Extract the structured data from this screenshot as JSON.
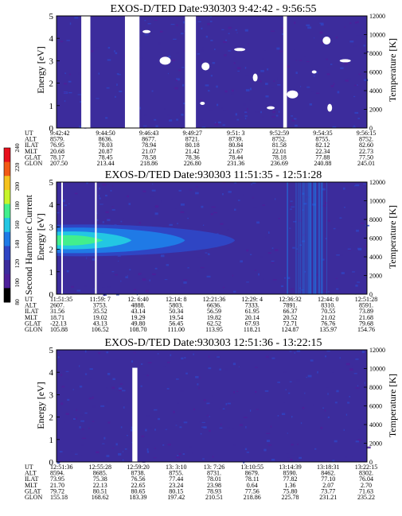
{
  "colors": {
    "background_field": "#3c2c9c",
    "void": "#ffffff",
    "palette": [
      "#000000",
      "#4d1f9a",
      "#3c2c9c",
      "#2f45c4",
      "#1f7ae6",
      "#23c7e3",
      "#42ef8d",
      "#c7f52b",
      "#f5c21d",
      "#f25a14",
      "#e8101c"
    ]
  },
  "colorbar": {
    "label": "Second Harmonic Current",
    "ticks": [
      "80",
      "100",
      "120",
      "140",
      "160",
      "180",
      "200",
      "220",
      "240"
    ]
  },
  "chart_data": [
    {
      "type": "heatmap",
      "title": "EXOS-D/TED   Date:930303   9:42:42 - 9:56:55",
      "ylabel": "Energy [eV]",
      "ylabel_right": "Temperature [K]",
      "ylim": [
        0,
        5
      ],
      "ylim_right": [
        0,
        12000
      ],
      "yticks": [
        "0",
        "1",
        "2",
        "3",
        "4",
        "5"
      ],
      "yticks_right": [
        "0",
        "2000",
        "4000",
        "6000",
        "8000",
        "10000",
        "12000"
      ],
      "time_range": [
        "9:42:42",
        "9:56:55"
      ],
      "data_gaps": [
        [
          "9:43:50",
          "9:44:15"
        ],
        [
          "9:45:50",
          "9:46:30"
        ],
        [
          "9:48:35",
          "9:49:05"
        ],
        [
          "9:53:05",
          "9:53:15"
        ]
      ],
      "table_rows": [
        {
          "label": "UT",
          "values": [
            "9:42:42",
            "9:44:50",
            "9:46:43",
            "9:49:27",
            "9:51: 3",
            "9:52:59",
            "9:54:35",
            "9:56:15"
          ]
        },
        {
          "label": "ALT",
          "values": [
            "8579.",
            "8636.",
            "8677.",
            "8721.",
            "8739.",
            "8752.",
            "8755.",
            "8752."
          ]
        },
        {
          "label": "ILAT",
          "values": [
            "76.95",
            "78.03",
            "78.94",
            "80.18",
            "80.84",
            "81.58",
            "82.12",
            "82.60"
          ]
        },
        {
          "label": "MLT",
          "values": [
            "20.68",
            "20.87",
            "21.07",
            "21.42",
            "21.67",
            "22.01",
            "22.34",
            "22.73"
          ]
        },
        {
          "label": "GLAT",
          "values": [
            "78.17",
            "78.45",
            "78.58",
            "78.36",
            "78.44",
            "78.18",
            "77.88",
            "77.50"
          ]
        },
        {
          "label": "GLON",
          "values": [
            "207.50",
            "213.44",
            "218.86",
            "226.80",
            "231.36",
            "236.69",
            "240.88",
            "245.01"
          ]
        }
      ]
    },
    {
      "type": "heatmap",
      "title": "EXOS-D/TED   Date:930303   11:51:35 - 12:51:28",
      "ylabel": "Energy [eV]",
      "ylabel_right": "Temperature [K]",
      "ylim": [
        0,
        5
      ],
      "ylim_right": [
        0,
        12000
      ],
      "yticks": [
        "0",
        "1",
        "2",
        "3",
        "4",
        "5"
      ],
      "yticks_right": [
        "0",
        "2000",
        "4000",
        "6000",
        "8000",
        "10000",
        "12000"
      ],
      "time_range": [
        "11:51:35",
        "12:51:28"
      ],
      "data_gaps": [
        [
          "11:52:30",
          "11:52:45"
        ],
        [
          "11:59:00",
          "11:59:20"
        ]
      ],
      "features": {
        "intense_band_energy_eV": [
          1.7,
          3.1
        ],
        "peak_energy_eV": 2.4,
        "band_fades_by": "12:26:00",
        "peak_level": 170
      },
      "table_rows": [
        {
          "label": "UT",
          "values": [
            "11:51:35",
            "11:59: 7",
            "12: 6:40",
            "12:14: 8",
            "12:21:36",
            "12:29: 4",
            "12:36:32",
            "12:44: 0",
            "12:51:28"
          ]
        },
        {
          "label": "ALT",
          "values": [
            "2607.",
            "3753.",
            "4888.",
            "5803.",
            "6636.",
            "7333.",
            "7891.",
            "8310.",
            "8591."
          ]
        },
        {
          "label": "ILAT",
          "values": [
            "31.56",
            "35.52",
            "43.14",
            "50.34",
            "56.59",
            "61.95",
            "66.37",
            "70.55",
            "73.89"
          ]
        },
        {
          "label": "MLT",
          "values": [
            "18.71",
            "19.02",
            "19.29",
            "19.54",
            "19.82",
            "20.14",
            "20.52",
            "21.02",
            "21.68"
          ]
        },
        {
          "label": "GLAT",
          "values": [
            "-22.13",
            "43.13",
            "49.80",
            "56.45",
            "62.52",
            "67.93",
            "72.71",
            "76.76",
            "79.68"
          ]
        },
        {
          "label": "GLON",
          "values": [
            "105.88",
            "106.52",
            "108.70",
            "111.00",
            "113.95",
            "118.21",
            "124.87",
            "135.97",
            "154.76"
          ]
        }
      ]
    },
    {
      "type": "heatmap",
      "title": "EXOS-D/TED   Date:930303   12:51:36 - 13:22:15",
      "ylabel": "Energy [eV]",
      "ylabel_right": "Temperature [K]",
      "ylim": [
        0,
        5
      ],
      "ylim_right": [
        0,
        12000
      ],
      "yticks": [
        "0",
        "1",
        "2",
        "3",
        "4",
        "5"
      ],
      "yticks_right": [
        "0",
        "2000",
        "4000",
        "6000",
        "8000",
        "10000",
        "12000"
      ],
      "time_range": [
        "12:51:36",
        "13:22:15"
      ],
      "data_gaps": [
        [
          "12:59:05",
          "12:59:35"
        ]
      ],
      "table_rows": [
        {
          "label": "UT",
          "values": [
            "12:51:36",
            "12:55:28",
            "12:59:20",
            "13: 3:10",
            "13: 7:26",
            "13:10:55",
            "13:14:39",
            "13:18:31",
            "13:22:15"
          ]
        },
        {
          "label": "ALT",
          "values": [
            "8594.",
            "8685.",
            "8738.",
            "8755.",
            "8731.",
            "8679.",
            "8590.",
            "8462.",
            "8302."
          ]
        },
        {
          "label": "ILAT",
          "values": [
            "73.95",
            "75.38",
            "76.56",
            "77.44",
            "78.01",
            "78.11",
            "77.82",
            "77.10",
            "76.04"
          ]
        },
        {
          "label": "MLT",
          "values": [
            "21.70",
            "22.13",
            "22.65",
            "23.24",
            "23.98",
            "0.64",
            "1.36",
            "2.07",
            "2.70"
          ]
        },
        {
          "label": "GLAT",
          "values": [
            "79.72",
            "80.51",
            "80.65",
            "80.15",
            "78.93",
            "77.56",
            "75.80",
            "73.77",
            "71.63"
          ]
        },
        {
          "label": "GLON",
          "values": [
            "155.18",
            "168.62",
            "183.39",
            "197.42",
            "210.51",
            "218.86",
            "225.78",
            "231.21",
            "235.22"
          ]
        }
      ]
    }
  ]
}
